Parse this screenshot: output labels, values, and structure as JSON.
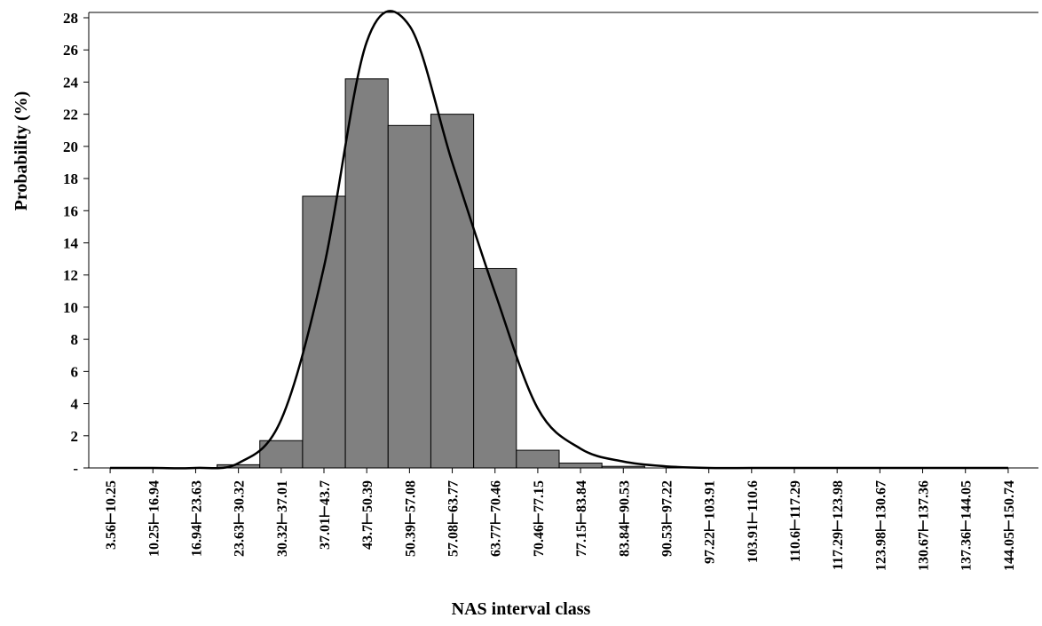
{
  "chart_data": {
    "type": "bar",
    "x_label": "NAS interval class",
    "y_label": "Probability (%)",
    "categories": [
      "3.56⊢10.25",
      "10.25⊢16.94",
      "16.94⊢23.63",
      "23.63⊢30.32",
      "30.32⊢37.01",
      "37.01⊢43.7",
      "43.7⊢50.39",
      "50.39⊢57.08",
      "57.08⊢63.77",
      "63.77⊢70.46",
      "70.46⊢77.15",
      "77.15⊢83.84",
      "83.84⊢90.53",
      "90.53⊢97.22",
      "97.22⊢103.91",
      "103.91⊢110.6",
      "110.6⊢117.29",
      "117.29⊢123.98",
      "123.98⊢130.67",
      "130.67⊢137.36",
      "137.36⊢144.05",
      "144.05⊢150.74"
    ],
    "values": [
      0,
      0,
      0,
      0.2,
      1.7,
      16.9,
      24.2,
      21.3,
      22.0,
      12.4,
      1.1,
      0.3,
      0.1,
      0,
      0,
      0,
      0,
      0,
      0,
      0,
      0,
      0
    ],
    "color": "#808080",
    "curve": {
      "color": "#000000",
      "values": [
        0,
        0,
        0,
        0.3,
        3.0,
        12.5,
        26.5,
        27.5,
        19.0,
        10.9,
        3.7,
        1.2,
        0.4,
        0.1,
        0,
        0,
        0,
        0,
        0,
        0,
        0,
        0
      ]
    },
    "ylim": [
      0,
      28
    ],
    "yticks": [
      {
        "value": 0,
        "label": "-"
      },
      2,
      4,
      6,
      8,
      10,
      12,
      14,
      16,
      18,
      20,
      22,
      24,
      26,
      28
    ]
  }
}
